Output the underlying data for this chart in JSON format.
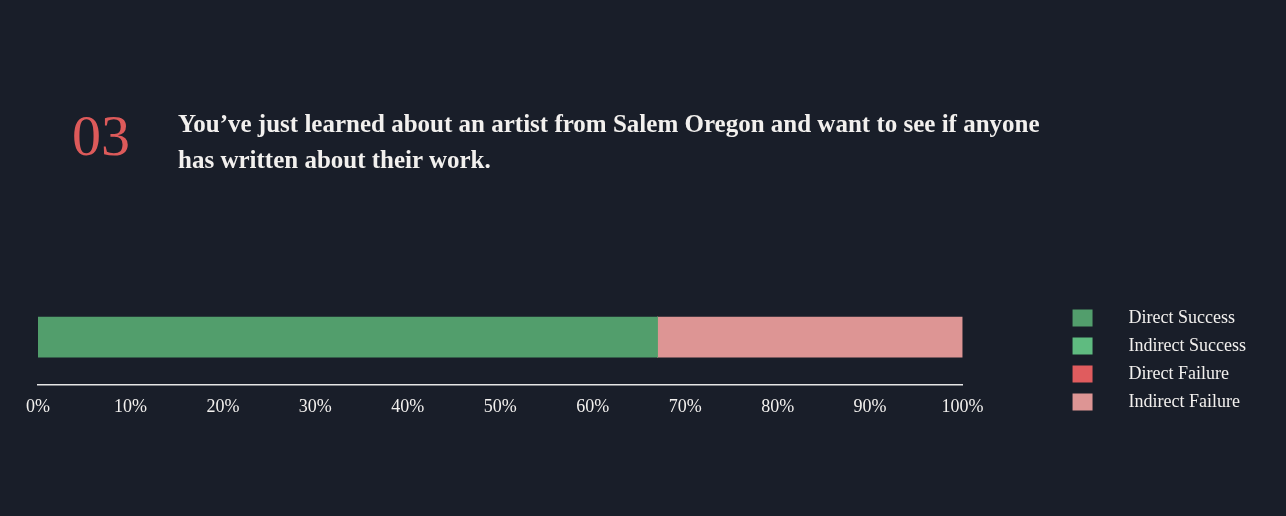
{
  "chart_data": {
    "type": "bar",
    "orientation": "horizontal",
    "stacked": true,
    "title": "You’ve just learned about an artist from Salem Oregon and want to see if anyone has written about their work.",
    "annotations": [
      "03"
    ],
    "categories": [
      null
    ],
    "series": [
      {
        "name": "Direct Success",
        "color": "#529e6c",
        "values": [
          67
        ]
      },
      {
        "name": "Indirect Success",
        "color": "#5fbb80",
        "values": [
          0
        ]
      },
      {
        "name": "Direct Failure",
        "color": "#e05c5e",
        "values": [
          0
        ]
      },
      {
        "name": "Indirect Failure",
        "color": "#dd9594",
        "values": [
          33
        ]
      }
    ],
    "xlim": [
      0,
      100
    ],
    "xticks": [
      {
        "value": 0,
        "label": "0%"
      },
      {
        "value": 10,
        "label": "10%"
      },
      {
        "value": 20,
        "label": "20%"
      },
      {
        "value": 30,
        "label": "30%"
      },
      {
        "value": 40,
        "label": "40%"
      },
      {
        "value": 50,
        "label": "50%"
      },
      {
        "value": 60,
        "label": "60%"
      },
      {
        "value": 70,
        "label": "70%"
      },
      {
        "value": 80,
        "label": "80%"
      },
      {
        "value": 90,
        "label": "90%"
      },
      {
        "value": 100,
        "label": "100%"
      }
    ],
    "grid": false,
    "legend": "right"
  }
}
